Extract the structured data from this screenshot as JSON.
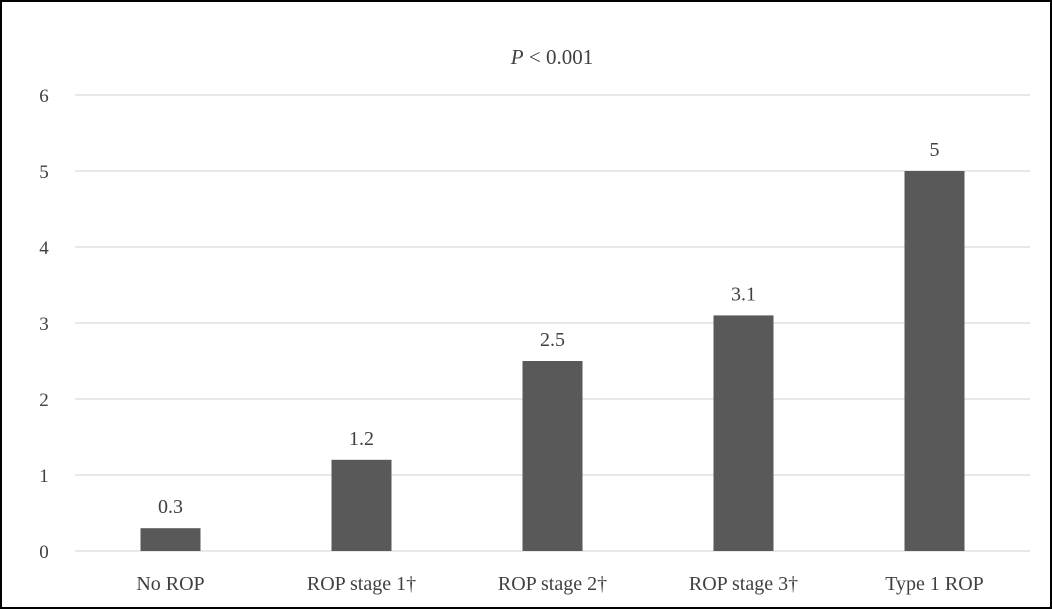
{
  "chart_data": {
    "type": "bar",
    "title_italic": "P",
    "title_rest": " < 0.001",
    "categories": [
      "No ROP",
      "ROP stage 1†",
      "ROP stage 2†",
      "ROP stage 3†",
      "Type 1 ROP"
    ],
    "values": [
      0.3,
      1.2,
      2.5,
      3.1,
      5
    ],
    "value_labels": [
      "0.3",
      "1.2",
      "2.5",
      "3.1",
      "5"
    ],
    "yticks": [
      "0",
      "1",
      "2",
      "3",
      "4",
      "5",
      "6"
    ],
    "ylim": [
      0,
      6
    ],
    "grid": true,
    "bar_color": "#595959",
    "grid_color": "#d9d9d9"
  }
}
